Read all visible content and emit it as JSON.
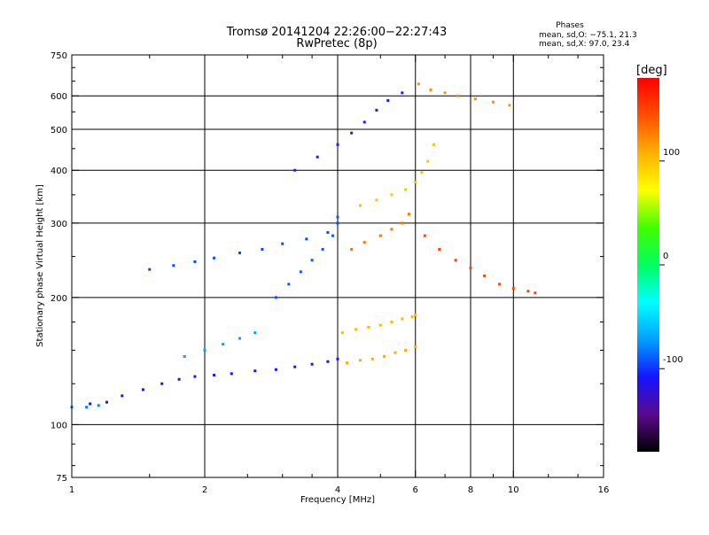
{
  "header": {
    "title_line1": "Tromsø 20141204 22:26:00−22:27:43",
    "title_line2": "RwPretec (8p)"
  },
  "legend_text": {
    "heading": "Phases",
    "line_o": "mean, sd,O: −75.1, 21.3",
    "line_x": "mean, sd,X:  97.0, 23.4"
  },
  "chart_data": {
    "type": "scatter",
    "xlabel": "Frequency [MHz]",
    "ylabel": "Stationary phase Virtual Height [km]",
    "x_scale": "log",
    "y_scale": "log",
    "xlim": [
      1,
      16
    ],
    "ylim": [
      75,
      750
    ],
    "x_ticks": [
      1,
      2,
      4,
      6,
      8,
      10,
      16
    ],
    "x_tick_labels": [
      "1",
      "2",
      "4",
      "6",
      "8",
      "10",
      "16"
    ],
    "y_ticks": [
      75,
      100,
      200,
      300,
      400,
      500,
      600,
      750
    ],
    "y_tick_labels": [
      "75",
      "100",
      "200",
      "300",
      "400",
      "500",
      "600",
      "750"
    ],
    "grid": true,
    "grid_x": [
      2,
      4,
      6,
      8,
      10
    ],
    "grid_y": [
      100,
      200,
      300,
      400,
      500,
      600
    ],
    "colorbar": {
      "label": "[deg]",
      "range": [
        -180,
        180
      ],
      "ticks": [
        100,
        0,
        -100
      ],
      "tick_labels": [
        "100",
        "0",
        "-100"
      ],
      "colors": [
        "#000000",
        "#5a0a8c",
        "#1414ff",
        "#00a0ff",
        "#00ffff",
        "#00ff60",
        "#40ff00",
        "#ffff00",
        "#ffb000",
        "#ff5000",
        "#ff0000"
      ]
    },
    "series": [
      {
        "phase_deg": -110,
        "x": [
          1.1,
          1.2,
          1.3,
          1.45,
          1.6,
          1.75,
          1.9,
          2.1,
          2.3,
          2.6,
          2.9,
          3.2,
          3.5,
          3.8,
          4.0
        ],
        "y": [
          112,
          113,
          117,
          121,
          125,
          128,
          130,
          131,
          132,
          134,
          135,
          137,
          139,
          141,
          143
        ]
      },
      {
        "phase_deg": -80,
        "x": [
          1.0,
          1.08,
          1.15
        ],
        "y": [
          110,
          110,
          111
        ]
      },
      {
        "phase_deg": -95,
        "x": [
          1.5,
          1.7,
          1.9,
          2.1,
          2.4,
          2.7,
          3.0,
          3.4,
          3.8,
          4.0
        ],
        "y": [
          233,
          238,
          243,
          248,
          255,
          260,
          268,
          275,
          285,
          300
        ]
      },
      {
        "phase_deg": -90,
        "x": [
          2.9,
          3.1,
          3.3,
          3.5,
          3.7,
          3.9,
          4.0
        ],
        "y": [
          200,
          215,
          230,
          245,
          260,
          280,
          310
        ]
      },
      {
        "phase_deg": -105,
        "x": [
          3.2,
          3.6,
          4.0,
          4.3,
          4.6,
          4.9,
          5.2,
          5.6
        ],
        "y": [
          400,
          430,
          460,
          490,
          520,
          555,
          585,
          610
        ]
      },
      {
        "phase_deg": -70,
        "x": [
          1.8,
          2.0,
          2.2,
          2.4,
          2.6
        ],
        "y": [
          145,
          150,
          155,
          160,
          165
        ]
      },
      {
        "phase_deg": 110,
        "x": [
          4.2,
          4.5,
          4.8,
          5.1,
          5.4,
          5.7,
          6.0
        ],
        "y": [
          140,
          142,
          143,
          145,
          148,
          150,
          153
        ]
      },
      {
        "phase_deg": 105,
        "x": [
          4.1,
          4.4,
          4.7,
          5.0,
          5.3,
          5.6,
          5.9,
          6.0
        ],
        "y": [
          165,
          168,
          170,
          172,
          175,
          178,
          180,
          182
        ]
      },
      {
        "phase_deg": 100,
        "x": [
          4.5,
          4.9,
          5.3,
          5.7,
          6.0,
          6.2,
          6.4,
          6.6
        ],
        "y": [
          330,
          340,
          350,
          360,
          375,
          395,
          420,
          460
        ]
      },
      {
        "phase_deg": 130,
        "x": [
          4.3,
          4.6,
          5.0,
          5.3,
          5.6,
          5.8
        ],
        "y": [
          260,
          270,
          280,
          290,
          300,
          315
        ]
      },
      {
        "phase_deg": 150,
        "x": [
          6.3,
          6.8,
          7.4,
          8.0,
          8.6,
          9.3,
          10.0,
          10.8,
          11.2
        ],
        "y": [
          280,
          260,
          245,
          235,
          225,
          215,
          210,
          207,
          205
        ]
      },
      {
        "phase_deg": 120,
        "x": [
          6.1,
          6.5,
          7.0,
          7.5,
          8.2,
          9.0,
          9.8
        ],
        "y": [
          640,
          620,
          610,
          600,
          590,
          580,
          570
        ]
      }
    ]
  }
}
